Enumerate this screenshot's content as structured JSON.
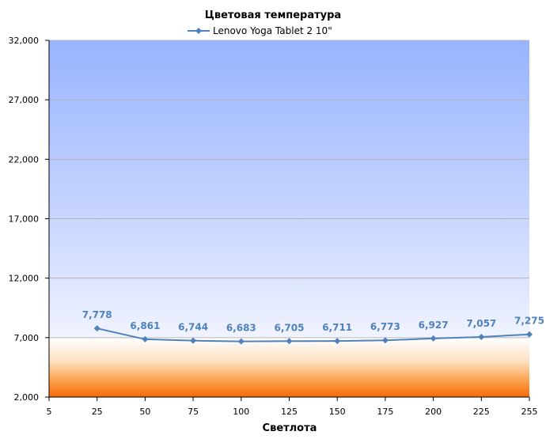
{
  "chart_data": {
    "type": "line",
    "title": "Цветовая температура",
    "xlabel": "Светлота",
    "ylabel": "",
    "x": [
      25,
      50,
      75,
      100,
      125,
      150,
      175,
      200,
      225,
      255
    ],
    "x_ticks": [
      "5",
      "25",
      "50",
      "75",
      "100",
      "125",
      "150",
      "175",
      "200",
      "225",
      "255"
    ],
    "y_ticks": [
      "2,000",
      "7,000",
      "12,000",
      "17,000",
      "22,000",
      "27,000",
      "32,000"
    ],
    "ylim": [
      2000,
      32000
    ],
    "grid": true,
    "legend_position": "top",
    "series": [
      {
        "name": "Lenovo Yoga Tablet 2 10\"",
        "color": "#4f81bd",
        "values": [
          7778,
          6861,
          6744,
          6683,
          6705,
          6711,
          6773,
          6927,
          7057,
          7275
        ],
        "labels": [
          "7,778",
          "6,861",
          "6,744",
          "6,683",
          "6,705",
          "6,711",
          "6,773",
          "6,927",
          "7,057",
          "7,275"
        ]
      }
    ]
  }
}
